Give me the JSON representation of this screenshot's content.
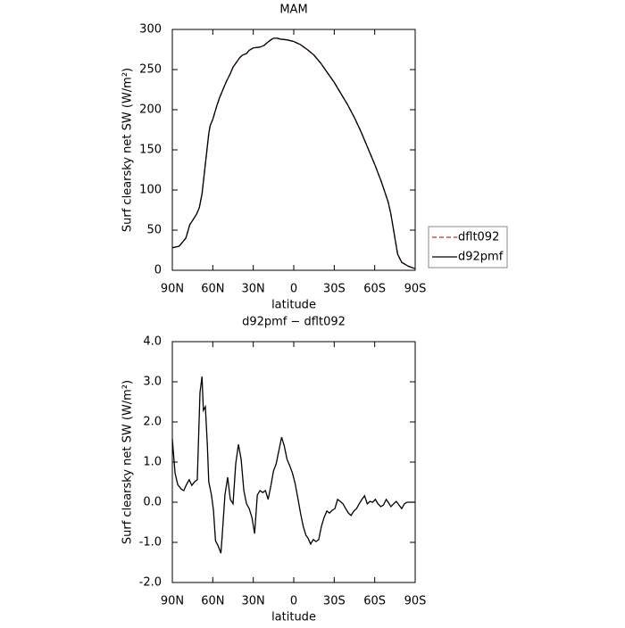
{
  "chart_data": [
    {
      "type": "line",
      "title": "MAM",
      "xlabel": "latitude",
      "ylabel": "Surf clearsky net SW (W/m²)",
      "xlim": [
        90,
        -90
      ],
      "ylim": [
        0,
        300
      ],
      "xticks": [
        {
          "value": 90,
          "label": "90N"
        },
        {
          "value": 60,
          "label": "60N"
        },
        {
          "value": 30,
          "label": "30N"
        },
        0,
        {
          "value": -30,
          "label": "30S"
        },
        {
          "value": -60,
          "label": "60S"
        },
        {
          "value": -90,
          "label": "90S"
        }
      ],
      "yticks": [
        0,
        50,
        100,
        150,
        200,
        250,
        300
      ],
      "legend": "right",
      "x": [
        90,
        87.5,
        85,
        80,
        77,
        75,
        72,
        70,
        68,
        66,
        65,
        63,
        62,
        60,
        57,
        55,
        50,
        47,
        45,
        40,
        38,
        35,
        33,
        30,
        25,
        22,
        20,
        17,
        15,
        12,
        10,
        5,
        0,
        -5,
        -10,
        -15,
        -20,
        -25,
        -30,
        -35,
        -40,
        -45,
        -50,
        -55,
        -60,
        -65,
        -70,
        -72,
        -75,
        -77,
        -80,
        -85,
        -90
      ],
      "series": [
        {
          "name": "dflt092",
          "color": "#e02020",
          "dashed": true,
          "values": [
            28,
            29,
            30,
            40,
            57,
            62,
            70,
            78,
            95,
            125,
            140,
            170,
            180,
            188,
            205,
            215,
            235,
            245,
            253,
            265,
            268,
            270,
            274,
            277,
            278,
            280,
            283,
            287,
            289,
            289,
            288,
            287,
            285,
            281,
            275,
            268,
            258,
            246,
            234,
            220,
            206,
            190,
            172,
            152,
            132,
            110,
            85,
            70,
            40,
            20,
            10,
            5,
            2
          ]
        },
        {
          "name": "d92pmf",
          "color": "#000000",
          "dashed": false,
          "values": [
            28,
            29,
            30,
            40,
            57,
            62,
            70,
            78,
            95,
            125,
            140,
            170,
            180,
            188,
            205,
            215,
            235,
            245,
            253,
            265,
            268,
            270,
            274,
            277,
            278,
            280,
            283,
            287,
            289,
            289,
            288,
            287,
            285,
            281,
            275,
            268,
            258,
            246,
            234,
            220,
            206,
            190,
            172,
            152,
            132,
            110,
            85,
            70,
            40,
            20,
            10,
            5,
            2
          ]
        }
      ]
    },
    {
      "type": "line",
      "title": "d92pmf − dflt092",
      "xlabel": "latitude",
      "ylabel": "Surf clearsky net SW (W/m²)",
      "xlim": [
        90,
        -90
      ],
      "ylim": [
        -2,
        4
      ],
      "xticks": [
        {
          "value": 90,
          "label": "90N"
        },
        {
          "value": 60,
          "label": "60N"
        },
        {
          "value": 30,
          "label": "30N"
        },
        0,
        {
          "value": -30,
          "label": "30S"
        },
        {
          "value": -60,
          "label": "60S"
        },
        {
          "value": -90,
          "label": "90S"
        }
      ],
      "yticks": [
        {
          "value": -2,
          "label": "-2.0"
        },
        {
          "value": -1,
          "label": "-1.0"
        },
        {
          "value": 0,
          "label": "0.0"
        },
        {
          "value": 1,
          "label": "1.0"
        },
        {
          "value": 2,
          "label": "2.0"
        },
        {
          "value": 3,
          "label": "3.0"
        },
        {
          "value": 4,
          "label": "4.0"
        }
      ],
      "x": [
        90,
        88,
        86,
        83.5,
        81.5,
        79.5,
        77.5,
        75.5,
        73.5,
        71.5,
        69.5,
        68,
        67,
        65.5,
        64,
        63,
        61,
        59.5,
        58,
        56,
        54,
        53,
        51,
        49,
        47,
        45,
        43,
        41,
        39,
        37,
        35,
        33,
        31,
        29,
        27,
        25,
        23,
        21,
        19,
        17,
        15,
        13,
        11,
        9,
        7,
        5,
        3,
        1,
        -1,
        -3,
        -5,
        -7,
        -9,
        -10.5,
        -12.5,
        -14.5,
        -16.5,
        -18.5,
        -20.5,
        -22.5,
        -24.5,
        -26.5,
        -28.5,
        -30.5,
        -32.5,
        -34.5,
        -36.5,
        -38.5,
        -40.5,
        -42.5,
        -44.5,
        -46.5,
        -48.5,
        -50.5,
        -52.5,
        -54.5,
        -56.5,
        -58.5,
        -60.5,
        -62.5,
        -64.5,
        -66.5,
        -68.5,
        -70,
        -72,
        -74,
        -76,
        -78,
        -80,
        -82,
        -84,
        -90
      ],
      "series": [
        {
          "color": "#000000",
          "dashed": false,
          "values": [
            1.58,
            0.73,
            0.44,
            0.33,
            0.29,
            0.44,
            0.56,
            0.42,
            0.51,
            0.56,
            2.73,
            3.13,
            2.29,
            2.38,
            1.4,
            0.51,
            0.18,
            -0.2,
            -0.96,
            -1.09,
            -1.27,
            -0.82,
            0.18,
            0.62,
            0.07,
            -0.04,
            0.96,
            1.44,
            1.07,
            0.29,
            -0.04,
            -0.16,
            -0.38,
            -0.78,
            0.18,
            0.29,
            0.24,
            0.29,
            0.07,
            0.4,
            0.78,
            0.96,
            1.29,
            1.62,
            1.4,
            1.07,
            0.91,
            0.73,
            0.47,
            0.11,
            -0.27,
            -0.6,
            -0.82,
            -0.89,
            -1.04,
            -0.93,
            -0.98,
            -0.93,
            -0.6,
            -0.38,
            -0.22,
            -0.27,
            -0.2,
            -0.16,
            0.07,
            0.02,
            -0.04,
            -0.16,
            -0.27,
            -0.33,
            -0.22,
            -0.16,
            -0.04,
            0.07,
            0.16,
            -0.04,
            0.02,
            0,
            0.07,
            -0.04,
            -0.11,
            -0.07,
            0.07,
            0,
            -0.11,
            -0.04,
            0.02,
            -0.07,
            -0.16,
            -0.04,
            0,
            0
          ]
        }
      ]
    }
  ]
}
